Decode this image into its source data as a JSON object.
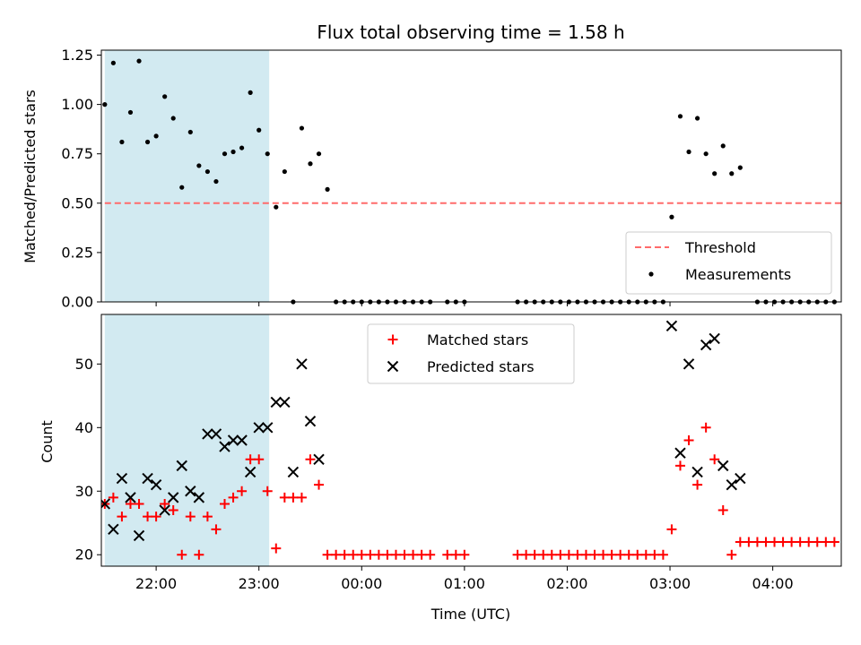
{
  "figure": {
    "title": "Flux total observing time = 1.58 h"
  },
  "chart_data": [
    {
      "type": "scatter",
      "ylabel": "Matched/Predicted stars",
      "xlabel": "",
      "xlim": [
        -32.0,
        400.0
      ],
      "ylim": [
        0.0,
        1.275
      ],
      "yticks": [
        0.0,
        0.25,
        0.5,
        0.75,
        1.0,
        1.25
      ],
      "ytick_labels": [
        "0.00",
        "0.25",
        "0.50",
        "0.75",
        "1.00",
        "1.25"
      ],
      "xticks": [
        0,
        60,
        120,
        180,
        240,
        300,
        360
      ],
      "shaded_span": [
        -30.0,
        66.0
      ],
      "shaded_color": "#add8e6",
      "threshold": {
        "name": "Threshold",
        "value": 0.5,
        "x_range": [
          -30.0,
          400.0
        ],
        "color": "#ff6b6b"
      },
      "series": [
        {
          "name": "Measurements",
          "color": "#000000",
          "marker": "dot",
          "x": [
            -30,
            -25,
            -20,
            -15,
            -10,
            -5,
            0,
            5,
            10,
            15,
            20,
            25,
            30,
            35,
            40,
            45,
            50,
            55,
            60,
            65,
            70,
            75,
            80,
            85,
            90,
            95,
            100,
            105,
            110,
            115,
            120,
            125,
            130,
            135,
            140,
            145,
            150,
            155,
            160,
            170,
            175,
            180,
            211,
            216,
            221,
            226,
            231,
            236,
            241,
            246,
            251,
            256,
            261,
            266,
            271,
            276,
            281,
            286,
            291,
            296,
            301,
            306,
            311,
            316,
            321,
            326,
            331,
            336,
            341,
            351,
            356,
            361,
            366,
            371,
            376,
            381,
            386,
            391,
            396
          ],
          "y": [
            1.0,
            1.21,
            0.81,
            0.96,
            1.22,
            0.81,
            0.84,
            1.04,
            0.93,
            0.58,
            0.86,
            0.69,
            0.66,
            0.61,
            0.75,
            0.76,
            0.78,
            1.06,
            0.87,
            0.75,
            0.48,
            0.66,
            0.0,
            0.88,
            0.7,
            0.75,
            0.57,
            0.0,
            0.0,
            0.0,
            0.0,
            0.0,
            0.0,
            0.0,
            0.0,
            0.0,
            0.0,
            0.0,
            0.0,
            0.0,
            0.0,
            0.0,
            0.0,
            0.0,
            0.0,
            0.0,
            0.0,
            0.0,
            0.0,
            0.0,
            0.0,
            0.0,
            0.0,
            0.0,
            0.0,
            0.0,
            0.0,
            0.0,
            0.0,
            0.0,
            0.43,
            0.94,
            0.76,
            0.93,
            0.75,
            0.65,
            0.79,
            0.65,
            0.68,
            0.0,
            0.0,
            0.0,
            0.0,
            0.0,
            0.0,
            0.0,
            0.0,
            0.0,
            0.0
          ]
        }
      ],
      "legend": {
        "placement": "lower-right",
        "entries": [
          "Threshold",
          "Measurements"
        ]
      }
    },
    {
      "type": "scatter",
      "ylabel": "Count",
      "xlabel": "Time (UTC)",
      "xlim": [
        -32.0,
        400.0
      ],
      "ylim": [
        18.2,
        57.8
      ],
      "yticks": [
        20,
        30,
        40,
        50
      ],
      "ytick_labels": [
        "20",
        "30",
        "40",
        "50"
      ],
      "xticks": [
        0,
        60,
        120,
        180,
        240,
        300,
        360
      ],
      "xtick_labels": [
        "22:00",
        "23:00",
        "00:00",
        "01:00",
        "02:00",
        "03:00",
        "04:00"
      ],
      "shaded_span": [
        -30.0,
        66.0
      ],
      "shaded_color": "#add8e6",
      "series": [
        {
          "name": "Matched stars",
          "color": "#ff0000",
          "marker": "plus",
          "x": [
            -30,
            -25,
            -20,
            -15,
            -10,
            -5,
            0,
            5,
            10,
            15,
            20,
            25,
            30,
            35,
            40,
            45,
            50,
            55,
            60,
            65,
            70,
            75,
            80,
            85,
            90,
            95,
            100,
            105,
            110,
            115,
            120,
            125,
            130,
            135,
            140,
            145,
            150,
            155,
            160,
            170,
            175,
            180,
            211,
            216,
            221,
            226,
            231,
            236,
            241,
            246,
            251,
            256,
            261,
            266,
            271,
            276,
            281,
            286,
            291,
            296,
            301,
            306,
            311,
            316,
            321,
            326,
            331,
            336,
            341,
            346,
            351,
            356,
            361,
            366,
            371,
            376,
            381,
            386,
            391,
            396
          ],
          "y": [
            28,
            29,
            26,
            28,
            28,
            26,
            26,
            28,
            27,
            20,
            26,
            20,
            26,
            24,
            28,
            29,
            30,
            35,
            35,
            30,
            21,
            29,
            29,
            29,
            35,
            31,
            20,
            20,
            20,
            20,
            20,
            20,
            20,
            20,
            20,
            20,
            20,
            20,
            20,
            20,
            20,
            20,
            20,
            20,
            20,
            20,
            20,
            20,
            20,
            20,
            20,
            20,
            20,
            20,
            20,
            20,
            20,
            20,
            20,
            20,
            24,
            34,
            38,
            31,
            40,
            35,
            27,
            20,
            22,
            22,
            22,
            22,
            22,
            22,
            22,
            22,
            22,
            22,
            22,
            22
          ]
        },
        {
          "name": "Predicted stars",
          "color": "#000000",
          "marker": "x",
          "x": [
            -30,
            -25,
            -20,
            -15,
            -10,
            -5,
            0,
            5,
            10,
            15,
            20,
            25,
            30,
            35,
            40,
            45,
            50,
            55,
            60,
            65,
            70,
            75,
            80,
            85,
            90,
            95,
            301,
            306,
            311,
            316,
            321,
            326,
            331,
            336,
            341
          ],
          "y": [
            28,
            24,
            32,
            29,
            23,
            32,
            31,
            27,
            29,
            34,
            30,
            29,
            39,
            39,
            37,
            38,
            38,
            33,
            40,
            40,
            44,
            44,
            33,
            50,
            41,
            35,
            56,
            36,
            50,
            33,
            53,
            54,
            34,
            31,
            32
          ]
        }
      ],
      "legend": {
        "placement": "upper-center",
        "entries": [
          "Matched stars",
          "Predicted stars"
        ]
      }
    }
  ]
}
